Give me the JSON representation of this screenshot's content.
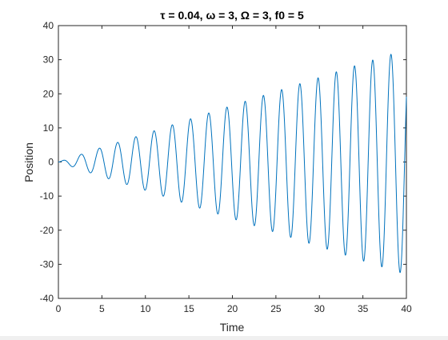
{
  "chart_data": {
    "type": "line",
    "title": "τ = 0.04,  ω = 3,  Ω = 3,   f0 = 5",
    "xlabel": "Time",
    "ylabel": "Position",
    "xlim": [
      0,
      40
    ],
    "ylim": [
      -40,
      40
    ],
    "xticks": [
      0,
      5,
      10,
      15,
      20,
      25,
      30,
      35,
      40
    ],
    "yticks": [
      -40,
      -30,
      -20,
      -10,
      0,
      10,
      20,
      30,
      40
    ],
    "grid": false,
    "box": true,
    "series": [
      {
        "color": "#0072bd",
        "model": "resonant forced oscillation: amplitude grows linearly with time",
        "samples_time": [
          0,
          5,
          10,
          15,
          20,
          25,
          30,
          35,
          40
        ],
        "samples_envelope": [
          0,
          4.3,
          8.3,
          12.5,
          16.6,
          20.7,
          24.8,
          29.0,
          33.0
        ]
      }
    ]
  }
}
